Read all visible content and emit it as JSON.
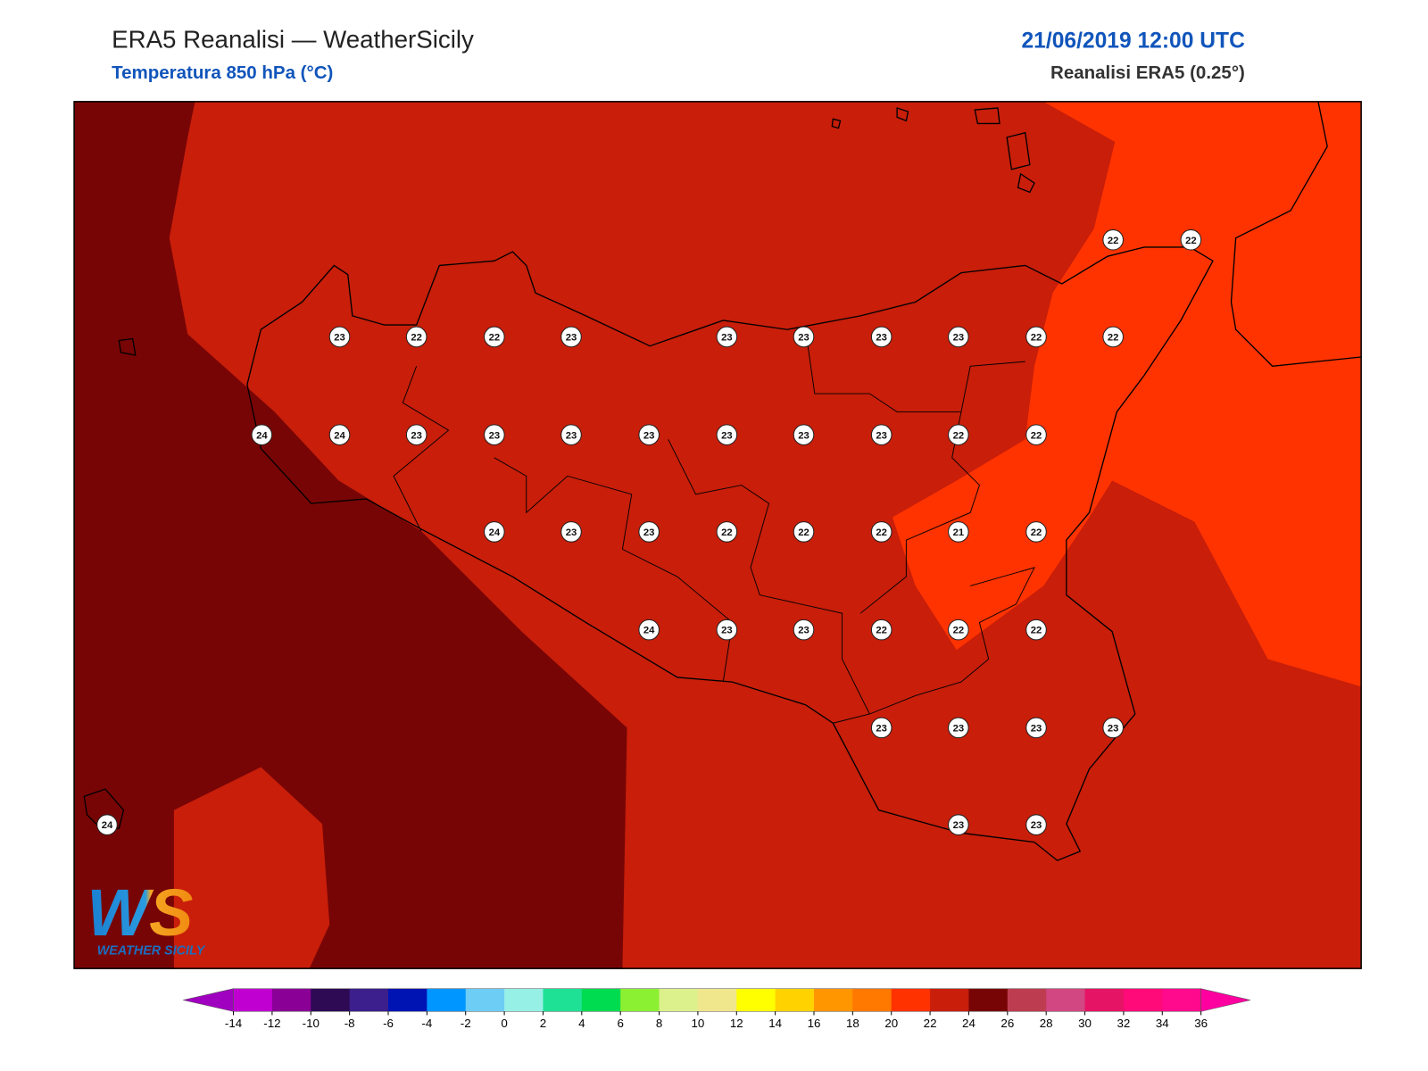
{
  "header": {
    "title": "ERA5 Reanalisi — WeatherSicily",
    "subtitle": "Temperatura 850 hPa (°C)",
    "datetime": "21/06/2019 12:00 UTC",
    "source": "Reanalisi ERA5 (0.25°)"
  },
  "logo": {
    "mark": "WS",
    "name": "WEATHER SICILY"
  },
  "map": {
    "station_values": [
      22,
      22,
      23,
      22,
      22,
      23,
      23,
      23,
      23,
      23,
      22,
      22,
      24,
      24,
      23,
      23,
      23,
      23,
      23,
      23,
      23,
      22,
      22,
      24,
      23,
      23,
      22,
      22,
      22,
      21,
      22,
      24,
      23,
      23,
      22,
      22,
      22,
      23,
      23,
      23,
      23,
      24,
      23,
      23
    ]
  },
  "colorbar": {
    "ticks": [
      -14,
      -12,
      -10,
      -8,
      -6,
      -4,
      -2,
      0,
      2,
      4,
      6,
      8,
      10,
      12,
      14,
      16,
      18,
      20,
      22,
      24,
      26,
      28,
      30,
      32,
      34,
      36
    ],
    "colors": [
      "#a000c0",
      "#c000d0",
      "#8a0096",
      "#2e0a55",
      "#3c1e8c",
      "#0014b4",
      "#0096ff",
      "#6ecdf5",
      "#96f0e6",
      "#1ee196",
      "#00dc50",
      "#8cf032",
      "#dcf08c",
      "#f0e68c",
      "#ffff00",
      "#ffd200",
      "#ff9600",
      "#ff7800",
      "#ff3200",
      "#c81e0a",
      "#780505",
      "#be3c50",
      "#d24682",
      "#e61464",
      "#ff0a78",
      "#ff0a8c",
      "#ff00a0"
    ]
  }
}
